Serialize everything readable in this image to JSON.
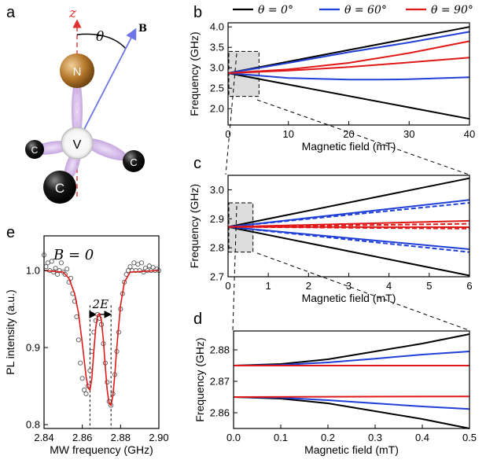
{
  "panel_labels": {
    "a": "a",
    "b": "b",
    "c": "c",
    "d": "d",
    "e": "e"
  },
  "colors": {
    "theta0": "#000000",
    "theta60": "#1f3fd6",
    "theta90": "#e01818",
    "nitrogen": "#b5782a",
    "vacancy_lobe": "#c9a7e0",
    "axis_z": "#e03030",
    "field_vector": "#6c74e6",
    "highlight_box": "#dcdcdc"
  },
  "legend": [
    {
      "label": "θ = 0°",
      "color": "#000000"
    },
    {
      "label": "θ = 60°",
      "color": "#1f3fd6"
    },
    {
      "label": "θ = 90°",
      "color": "#e01818"
    }
  ],
  "panel_a": {
    "z_label": "z",
    "theta_label": "θ",
    "field_label": "B",
    "nitrogen_label": "N",
    "vacancy_label": "V",
    "carbon_labels": [
      "C",
      "C",
      "C"
    ]
  },
  "chart_data": [
    {
      "panel": "b",
      "type": "line",
      "xlabel": "Magnetic field (mT)",
      "ylabel": "Frequency (GHz)",
      "xlim": [
        0,
        40
      ],
      "ylim": [
        1.6,
        4.1
      ],
      "xticks": [
        "0",
        "10",
        "20",
        "30",
        "40"
      ],
      "yticks": [
        "2.0",
        "2.5",
        "3.0",
        "3.5",
        "4.0"
      ],
      "zoom_box": {
        "x": [
          0,
          5
        ],
        "y": [
          2.3,
          3.4
        ]
      },
      "series": [
        {
          "theta": 0,
          "x": [
            0,
            40
          ],
          "y": [
            2.87,
            4.0
          ],
          "style": "solid"
        },
        {
          "theta": 0,
          "x": [
            0,
            40
          ],
          "y": [
            2.87,
            1.75
          ],
          "style": "solid"
        },
        {
          "theta": 60,
          "x": [
            0,
            10,
            20,
            30,
            40
          ],
          "y": [
            2.87,
            3.12,
            3.38,
            3.62,
            3.88
          ],
          "style": "solid"
        },
        {
          "theta": 60,
          "x": [
            0,
            10,
            20,
            25,
            30,
            40
          ],
          "y": [
            2.87,
            2.75,
            2.71,
            2.71,
            2.72,
            2.77
          ],
          "style": "solid"
        },
        {
          "theta": 90,
          "x": [
            0,
            10,
            20,
            30,
            40
          ],
          "y": [
            2.87,
            2.96,
            3.12,
            3.36,
            3.65
          ],
          "style": "solid"
        },
        {
          "theta": 90,
          "x": [
            0,
            10,
            20,
            30,
            40
          ],
          "y": [
            2.87,
            2.93,
            3.02,
            3.13,
            3.25
          ],
          "style": "solid"
        }
      ]
    },
    {
      "panel": "c",
      "type": "line",
      "xlabel": "Magnetic field (mT)",
      "ylabel": "Frequency (GHz)",
      "xlim": [
        0,
        6
      ],
      "ylim": [
        2.7,
        3.05
      ],
      "xticks": [
        "0",
        "1",
        "2",
        "3",
        "4",
        "5",
        "6"
      ],
      "yticks": [
        "2.7",
        "2.8",
        "2.9",
        "3.0"
      ],
      "zoom_box": {
        "x": [
          0,
          0.6
        ],
        "y": [
          2.785,
          2.955
        ]
      },
      "series": [
        {
          "theta": 0,
          "x": [
            0,
            6
          ],
          "y": [
            2.872,
            3.04
          ],
          "style": "solid"
        },
        {
          "theta": 0,
          "x": [
            0,
            6
          ],
          "y": [
            2.872,
            2.704
          ],
          "style": "solid"
        },
        {
          "theta": 60,
          "x": [
            0,
            6
          ],
          "y": [
            2.872,
            2.965
          ],
          "style": "solid"
        },
        {
          "theta": 60,
          "x": [
            0,
            6
          ],
          "y": [
            2.872,
            2.955
          ],
          "style": "dashed"
        },
        {
          "theta": 60,
          "x": [
            0,
            6
          ],
          "y": [
            2.872,
            2.795
          ],
          "style": "solid"
        },
        {
          "theta": 60,
          "x": [
            0,
            6
          ],
          "y": [
            2.872,
            2.785
          ],
          "style": "dashed"
        },
        {
          "theta": 90,
          "x": [
            0,
            6
          ],
          "y": [
            2.872,
            2.893
          ],
          "style": "solid"
        },
        {
          "theta": 90,
          "x": [
            0,
            6
          ],
          "y": [
            2.872,
            2.883
          ],
          "style": "dashed"
        },
        {
          "theta": 90,
          "x": [
            0,
            6
          ],
          "y": [
            2.872,
            2.871
          ],
          "style": "solid"
        },
        {
          "theta": 90,
          "x": [
            0,
            6
          ],
          "y": [
            2.872,
            2.866
          ],
          "style": "dashed"
        }
      ]
    },
    {
      "panel": "d",
      "type": "line",
      "xlabel": "Magnetic field (mT)",
      "ylabel": "Frequency (GHz)",
      "xlim": [
        0,
        0.5
      ],
      "ylim": [
        2.855,
        2.886
      ],
      "xticks": [
        "0.0",
        "0.1",
        "0.2",
        "0.3",
        "0.4",
        "0.5"
      ],
      "yticks": [
        "2.86",
        "2.87",
        "2.88"
      ],
      "series": [
        {
          "theta": 0,
          "x": [
            0,
            0.1,
            0.2,
            0.3,
            0.4,
            0.5
          ],
          "y": [
            2.875,
            2.8755,
            2.877,
            2.8795,
            2.882,
            2.885
          ],
          "style": "solid"
        },
        {
          "theta": 0,
          "x": [
            0,
            0.1,
            0.2,
            0.3,
            0.4,
            0.5
          ],
          "y": [
            2.865,
            2.8645,
            2.863,
            2.8605,
            2.858,
            2.855
          ],
          "style": "solid"
        },
        {
          "theta": 60,
          "x": [
            0,
            0.1,
            0.2,
            0.3,
            0.4,
            0.5
          ],
          "y": [
            2.875,
            2.8752,
            2.876,
            2.8772,
            2.8785,
            2.8795
          ],
          "style": "solid"
        },
        {
          "theta": 60,
          "x": [
            0,
            0.1,
            0.2,
            0.3,
            0.4,
            0.5
          ],
          "y": [
            2.865,
            2.8648,
            2.864,
            2.863,
            2.862,
            2.8612
          ],
          "style": "solid"
        },
        {
          "theta": 90,
          "x": [
            0,
            0.5
          ],
          "y": [
            2.875,
            2.875
          ],
          "style": "solid"
        },
        {
          "theta": 90,
          "x": [
            0,
            0.5
          ],
          "y": [
            2.865,
            2.8652
          ],
          "style": "solid"
        }
      ]
    },
    {
      "panel": "e",
      "type": "scatter",
      "annotation": "B = 0",
      "splitting_label": "2E",
      "xlabel": "MW frequency (GHz)",
      "ylabel": "PL intensity (a.u.)",
      "xlim": [
        2.84,
        2.9
      ],
      "ylim": [
        0.795,
        1.045
      ],
      "xticks": [
        "2.84",
        "2.86",
        "2.88",
        "2.90"
      ],
      "yticks": [
        "0.8",
        "0.9",
        "1.0"
      ],
      "dashed_markers_x": [
        2.864,
        2.875
      ],
      "points_x": [
        2.84,
        2.841,
        2.842,
        2.843,
        2.844,
        2.845,
        2.846,
        2.847,
        2.848,
        2.849,
        2.85,
        2.851,
        2.852,
        2.853,
        2.854,
        2.855,
        2.856,
        2.857,
        2.858,
        2.859,
        2.86,
        2.861,
        2.862,
        2.863,
        2.864,
        2.865,
        2.866,
        2.867,
        2.868,
        2.869,
        2.87,
        2.871,
        2.872,
        2.873,
        2.874,
        2.875,
        2.876,
        2.877,
        2.878,
        2.879,
        2.88,
        2.881,
        2.882,
        2.883,
        2.884,
        2.885,
        2.886,
        2.887,
        2.888,
        2.889,
        2.89,
        2.891,
        2.892,
        2.893,
        2.894,
        2.895,
        2.896,
        2.897,
        2.898,
        2.899,
        2.9
      ],
      "points_y": [
        1.02,
        1.005,
        1.01,
        1.0,
        1.012,
        0.998,
        1.003,
        0.995,
        1.0,
        1.01,
        0.998,
        0.995,
        1.002,
        0.985,
        0.99,
        0.97,
        0.96,
        0.94,
        0.91,
        0.88,
        0.86,
        0.845,
        0.84,
        0.85,
        0.87,
        0.895,
        0.92,
        0.935,
        0.943,
        0.938,
        0.93,
        0.905,
        0.88,
        0.855,
        0.83,
        0.825,
        0.84,
        0.865,
        0.895,
        0.92,
        0.95,
        0.97,
        0.985,
        0.995,
        1.0,
        1.005,
        1.0,
        1.01,
        1.0,
        1.008,
        1.0,
        1.01,
        0.998,
        1.003,
        1.0,
        1.006,
        1.0,
        1.004,
        1.0,
        1.002,
        1.0
      ],
      "fit_x": [
        2.84,
        2.85,
        2.853,
        2.856,
        2.858,
        2.86,
        2.862,
        2.863,
        2.864,
        2.865,
        2.866,
        2.867,
        2.868,
        2.869,
        2.87,
        2.871,
        2.872,
        2.873,
        2.874,
        2.875,
        2.876,
        2.877,
        2.878,
        2.88,
        2.882,
        2.885,
        2.9
      ],
      "fit_y": [
        1.0,
        0.998,
        0.99,
        0.97,
        0.945,
        0.905,
        0.862,
        0.848,
        0.845,
        0.86,
        0.895,
        0.925,
        0.942,
        0.944,
        0.935,
        0.91,
        0.875,
        0.845,
        0.828,
        0.825,
        0.838,
        0.865,
        0.9,
        0.955,
        0.985,
        0.998,
        1.0
      ],
      "fit_color": "#e01818"
    }
  ]
}
